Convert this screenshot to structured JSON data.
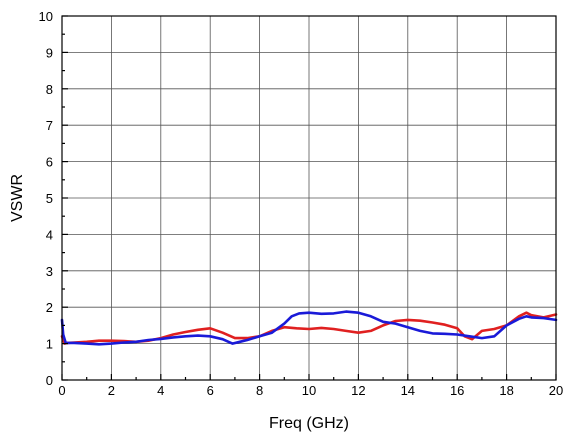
{
  "chart_data": {
    "type": "line",
    "title": "",
    "xlabel": "Freq (GHz)",
    "ylabel": "VSWR",
    "xlim": [
      0,
      20
    ],
    "ylim": [
      0,
      10
    ],
    "xticks": [
      0,
      2,
      4,
      6,
      8,
      10,
      12,
      14,
      16,
      18,
      20
    ],
    "yticks": [
      0,
      1,
      2,
      3,
      4,
      5,
      6,
      7,
      8,
      9,
      10
    ],
    "grid": true,
    "legend": "none",
    "series": [
      {
        "color": "#e02020",
        "x": [
          0,
          0.1,
          0.2,
          0.5,
          1.0,
          1.5,
          2.0,
          2.5,
          3.0,
          3.5,
          4.0,
          4.5,
          5.0,
          5.5,
          6.0,
          6.5,
          7.0,
          7.5,
          8.0,
          8.5,
          9.0,
          9.5,
          10.0,
          10.5,
          11.0,
          11.5,
          12.0,
          12.5,
          13.0,
          13.5,
          14.0,
          14.5,
          15.0,
          15.5,
          16.0,
          16.3,
          16.6,
          17.0,
          17.5,
          18.0,
          18.5,
          18.8,
          19.0,
          19.5,
          20.0
        ],
        "y": [
          1.2,
          1.0,
          1.02,
          1.03,
          1.05,
          1.08,
          1.08,
          1.07,
          1.05,
          1.08,
          1.15,
          1.25,
          1.32,
          1.38,
          1.42,
          1.3,
          1.15,
          1.15,
          1.2,
          1.35,
          1.45,
          1.42,
          1.4,
          1.43,
          1.4,
          1.35,
          1.3,
          1.35,
          1.5,
          1.62,
          1.65,
          1.63,
          1.58,
          1.52,
          1.42,
          1.2,
          1.12,
          1.35,
          1.4,
          1.5,
          1.75,
          1.85,
          1.78,
          1.72,
          1.8
        ]
      },
      {
        "color": "#1a1ad8",
        "x": [
          0,
          0.05,
          0.15,
          0.5,
          1.0,
          1.5,
          2.0,
          2.5,
          3.0,
          3.5,
          4.0,
          4.5,
          5.0,
          5.5,
          6.0,
          6.5,
          6.9,
          7.2,
          7.5,
          8.0,
          8.5,
          9.0,
          9.3,
          9.6,
          10.0,
          10.5,
          11.0,
          11.5,
          12.0,
          12.5,
          13.0,
          13.5,
          14.0,
          14.5,
          15.0,
          15.5,
          16.0,
          16.5,
          17.0,
          17.5,
          18.0,
          18.5,
          18.8,
          19.0,
          19.5,
          20.0
        ],
        "y": [
          1.65,
          1.25,
          1.02,
          1.02,
          1.0,
          0.98,
          1.0,
          1.03,
          1.05,
          1.1,
          1.13,
          1.17,
          1.2,
          1.22,
          1.2,
          1.12,
          1.0,
          1.05,
          1.1,
          1.2,
          1.3,
          1.55,
          1.75,
          1.83,
          1.85,
          1.82,
          1.83,
          1.88,
          1.85,
          1.75,
          1.6,
          1.55,
          1.45,
          1.35,
          1.28,
          1.27,
          1.25,
          1.2,
          1.15,
          1.2,
          1.5,
          1.68,
          1.75,
          1.72,
          1.7,
          1.65
        ]
      }
    ]
  }
}
